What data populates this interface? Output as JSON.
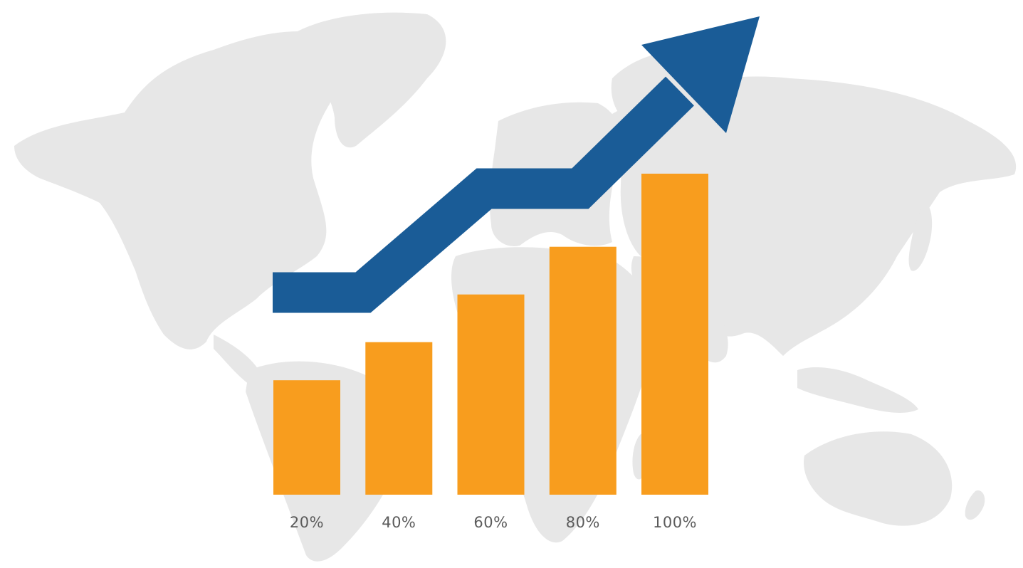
{
  "chart_data": {
    "type": "bar",
    "categories": [
      "20%",
      "40%",
      "60%",
      "80%",
      "100%"
    ],
    "values": [
      36,
      48,
      63,
      78,
      101
    ],
    "ylim": [
      0,
      101
    ],
    "grid": false,
    "legend": "none",
    "overlay": "upward-trend-arrow",
    "background": "world-map-silhouette"
  },
  "colors": {
    "bar": "#F89D1E",
    "arrow": "#1A5C97",
    "map": "#E7E7E7",
    "label": "#5B5B5B",
    "background": "#FFFFFF"
  }
}
